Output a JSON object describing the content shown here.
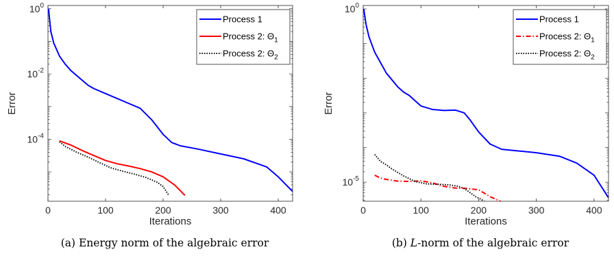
{
  "chart_data": [
    {
      "type": "line",
      "caption_prefix": "(a)",
      "caption": "Energy norm of the algebraic error",
      "xlabel": "Iterations",
      "ylabel": "Error",
      "xlim": [
        0,
        425
      ],
      "ylim_log": [
        -5.9,
        0.1
      ],
      "yscale": "log",
      "xticks": [
        "0",
        "100",
        "200",
        "300",
        "400"
      ],
      "xtick_values": [
        0,
        100,
        200,
        300,
        400
      ],
      "yticks": [
        {
          "base": "10",
          "exp": "0",
          "value": 0
        },
        {
          "base": "10",
          "exp": "-2",
          "value": -2
        },
        {
          "base": "10",
          "exp": "-4",
          "value": -4
        }
      ],
      "legend_position": "top-right",
      "series": [
        {
          "name": "Process 1",
          "color": "#0000ff",
          "dash": "solid",
          "x": [
            1,
            5,
            10,
            20,
            30,
            40,
            50,
            60,
            70,
            80,
            100,
            120,
            140,
            160,
            180,
            200,
            215,
            230,
            260,
            300,
            340,
            380,
            400,
            425
          ],
          "log10y": [
            0.0,
            -0.7,
            -1.05,
            -1.45,
            -1.7,
            -1.9,
            -2.05,
            -2.2,
            -2.35,
            -2.45,
            -2.6,
            -2.75,
            -2.9,
            -3.05,
            -3.4,
            -3.85,
            -4.1,
            -4.2,
            -4.3,
            -4.45,
            -4.6,
            -4.85,
            -5.15,
            -5.6
          ]
        },
        {
          "name": "Process 2: Θ1",
          "name_base": "Process 2: Θ",
          "name_sub": "1",
          "color": "#ff0000",
          "dash": "solid",
          "x": [
            20,
            40,
            60,
            80,
            100,
            120,
            140,
            160,
            180,
            200,
            220,
            238
          ],
          "log10y": [
            -4.05,
            -4.18,
            -4.35,
            -4.5,
            -4.65,
            -4.75,
            -4.82,
            -4.9,
            -5.0,
            -5.15,
            -5.4,
            -5.72
          ]
        },
        {
          "name": "Process 2: Θ2",
          "name_base": "Process 2: Θ",
          "name_sub": "2",
          "color": "#000000",
          "dash": "dotted",
          "x": [
            20,
            30,
            50,
            70,
            90,
            110,
            130,
            150,
            170,
            190,
            200,
            210
          ],
          "log10y": [
            -4.08,
            -4.22,
            -4.4,
            -4.55,
            -4.72,
            -4.88,
            -4.98,
            -5.07,
            -5.17,
            -5.32,
            -5.45,
            -5.72
          ]
        }
      ]
    },
    {
      "type": "line",
      "caption_prefix": "(b)",
      "caption_italic": "L",
      "caption": "-norm of the algebraic error",
      "xlabel": "Iterations",
      "ylabel": "Error",
      "xlim": [
        0,
        425
      ],
      "ylim_log": [
        -5.55,
        0.1
      ],
      "yscale": "log",
      "xticks": [
        "0",
        "100",
        "200",
        "300",
        "400"
      ],
      "xtick_values": [
        0,
        100,
        200,
        300,
        400
      ],
      "yticks": [
        {
          "base": "10",
          "exp": "0",
          "value": 0
        },
        {
          "base": "10",
          "exp": "-5",
          "value": -5
        }
      ],
      "legend_position": "top-right",
      "series": [
        {
          "name": "Process 1",
          "color": "#0000ff",
          "dash": "solid",
          "x": [
            1,
            5,
            10,
            20,
            30,
            40,
            50,
            60,
            70,
            80,
            90,
            100,
            120,
            140,
            160,
            175,
            185,
            200,
            220,
            240,
            270,
            300,
            340,
            370,
            400,
            425
          ],
          "log10y": [
            0.0,
            -0.45,
            -0.8,
            -1.25,
            -1.55,
            -1.85,
            -2.05,
            -2.25,
            -2.4,
            -2.5,
            -2.65,
            -2.8,
            -2.9,
            -2.93,
            -2.92,
            -3.0,
            -3.2,
            -3.55,
            -3.9,
            -4.05,
            -4.1,
            -4.15,
            -4.25,
            -4.45,
            -4.8,
            -5.45
          ]
        },
        {
          "name": "Process 2: Θ1",
          "name_base": "Process 2: Θ",
          "name_sub": "1",
          "color": "#ff0000",
          "dash": "dashdot",
          "x": [
            20,
            30,
            40,
            60,
            80,
            100,
            120,
            140,
            160,
            180,
            200,
            220,
            238
          ],
          "log10y": [
            -4.8,
            -4.88,
            -4.92,
            -4.97,
            -4.98,
            -4.96,
            -5.02,
            -5.12,
            -5.17,
            -5.18,
            -5.22,
            -5.42,
            -5.55
          ]
        },
        {
          "name": "Process 2: Θ2",
          "name_base": "Process 2: Θ",
          "name_sub": "2",
          "color": "#000000",
          "dash": "dotted",
          "x": [
            20,
            30,
            40,
            50,
            70,
            90,
            110,
            130,
            150,
            165,
            175,
            185,
            195,
            205,
            212
          ],
          "log10y": [
            -4.2,
            -4.4,
            -4.5,
            -4.62,
            -4.82,
            -4.98,
            -5.05,
            -5.06,
            -5.08,
            -5.12,
            -5.18,
            -5.3,
            -5.42,
            -5.5,
            -5.58
          ]
        }
      ]
    }
  ]
}
